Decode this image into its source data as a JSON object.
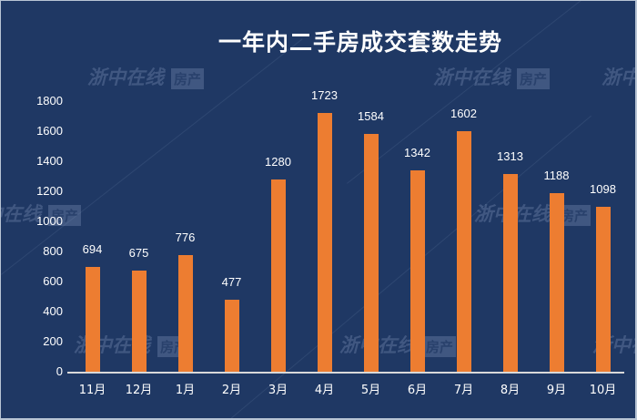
{
  "chart_data": {
    "type": "bar",
    "title": "一年内二手房成交套数走势",
    "categories": [
      "11月",
      "12月",
      "1月",
      "2月",
      "3月",
      "4月",
      "5月",
      "6月",
      "7月",
      "8月",
      "9月",
      "10月"
    ],
    "values": [
      694,
      675,
      776,
      477,
      1280,
      1723,
      1584,
      1342,
      1602,
      1313,
      1188,
      1098
    ],
    "xlabel": "",
    "ylabel": "",
    "ylim": [
      0,
      1800
    ],
    "yticks": [
      0,
      200,
      400,
      600,
      800,
      1000,
      1200,
      1400,
      1600,
      1800
    ],
    "grid": false,
    "legend": null,
    "data_labels": true,
    "colors": {
      "bar": "#ed7d31",
      "background": "#1f3864",
      "text": "#ffffff",
      "axis": "#d9d9d9"
    }
  },
  "watermark": {
    "text": "浙中在线",
    "badge": "房产"
  }
}
